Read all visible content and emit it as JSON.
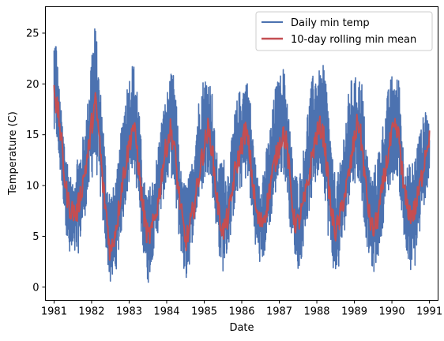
{
  "chart_data": {
    "type": "line",
    "title": "",
    "xlabel": "Date",
    "ylabel": "Temperature (C)",
    "xlim": [
      1980.77,
      1991.23
    ],
    "ylim": [
      -1.3,
      27.6
    ],
    "x_ticks": [
      1981,
      1982,
      1983,
      1984,
      1985,
      1986,
      1987,
      1988,
      1989,
      1990,
      1991
    ],
    "x_tick_labels": [
      "1981",
      "1982",
      "1983",
      "1984",
      "1985",
      "1986",
      "1987",
      "1988",
      "1989",
      "1990",
      "1991"
    ],
    "y_ticks": [
      0,
      5,
      10,
      15,
      20,
      25
    ],
    "y_tick_labels": [
      "0",
      "5",
      "10",
      "15",
      "20",
      "25"
    ],
    "grid": false,
    "legend_position": "top-right",
    "series": [
      {
        "name": "Daily min temp",
        "color": "#4c72b0",
        "style": "daily",
        "x": [
          1981.0,
          1981.05,
          1981.12,
          1981.2,
          1981.3,
          1981.4,
          1981.5,
          1981.6,
          1981.7,
          1981.8,
          1981.9,
          1982.0,
          1982.1,
          1982.2,
          1982.3,
          1982.4,
          1982.5,
          1982.6,
          1982.7,
          1982.8,
          1982.9,
          1983.0,
          1983.1,
          1983.2,
          1983.3,
          1983.4,
          1983.5,
          1983.6,
          1983.7,
          1983.8,
          1983.9,
          1984.0,
          1984.1,
          1984.2,
          1984.3,
          1984.4,
          1984.5,
          1984.6,
          1984.7,
          1984.8,
          1984.9,
          1985.0,
          1985.1,
          1985.2,
          1985.3,
          1985.4,
          1985.5,
          1985.6,
          1985.7,
          1985.8,
          1985.9,
          1986.0,
          1986.1,
          1986.2,
          1986.3,
          1986.4,
          1986.5,
          1986.6,
          1986.7,
          1986.8,
          1986.9,
          1987.0,
          1987.1,
          1987.2,
          1987.3,
          1987.4,
          1987.5,
          1987.6,
          1987.7,
          1987.8,
          1987.9,
          1988.0,
          1988.1,
          1988.2,
          1988.3,
          1988.4,
          1988.5,
          1988.6,
          1988.7,
          1988.8,
          1988.9,
          1989.0,
          1989.1,
          1989.2,
          1989.3,
          1989.4,
          1989.5,
          1989.6,
          1989.7,
          1989.8,
          1989.9,
          1990.0,
          1990.1,
          1990.2,
          1990.3,
          1990.4,
          1990.5,
          1990.6,
          1990.7,
          1990.8,
          1990.9,
          1991.0
        ],
        "lower": [
          14,
          15,
          12.2,
          10,
          6.5,
          2.2,
          3,
          2.3,
          4.5,
          6.5,
          8.5,
          10.5,
          11.5,
          10,
          6,
          3.2,
          0.1,
          0.8,
          2.5,
          5.5,
          8,
          9.8,
          12,
          9.5,
          5.5,
          3,
          0.1,
          2.5,
          4,
          6,
          8.5,
          9.7,
          11.5,
          9,
          5.5,
          3,
          0.2,
          2,
          5,
          7,
          9,
          10,
          11.5,
          9.5,
          6.5,
          3,
          1.5,
          3,
          5,
          7.5,
          8.8,
          9.8,
          10.5,
          9.5,
          5.5,
          3.5,
          1.8,
          3,
          5,
          7,
          9,
          10.5,
          11.5,
          9.5,
          5.5,
          3.5,
          1.6,
          3,
          5.5,
          7.5,
          9,
          10.3,
          11.5,
          9.5,
          5,
          2.5,
          0.6,
          2,
          4.5,
          7,
          9.5,
          10.2,
          10.5,
          8.5,
          5,
          2.5,
          1.3,
          2,
          4.5,
          7,
          9,
          10,
          11.5,
          9.5,
          5,
          2.2,
          1.3,
          1.5,
          4,
          6.5,
          9,
          10
        ],
        "upper": [
          25,
          25,
          20.5,
          17,
          14,
          12,
          10,
          13.5,
          13.5,
          15.5,
          18.5,
          24,
          26.2,
          21,
          17,
          11,
          9.5,
          10,
          12,
          16,
          19.5,
          21,
          22.4,
          21,
          15.5,
          10.5,
          9.5,
          10.5,
          12,
          15,
          17.5,
          19,
          21,
          21,
          16,
          10.5,
          10.5,
          11,
          13,
          17,
          20,
          20.9,
          21,
          20,
          14,
          12,
          13.5,
          11,
          13.5,
          17,
          19,
          20,
          20.8,
          20,
          15,
          11,
          11.3,
          12.5,
          14.5,
          17,
          20,
          20.6,
          21.9,
          20,
          15,
          11.5,
          11,
          12,
          16,
          19,
          21,
          21.9,
          21,
          22.2,
          19,
          13,
          11,
          11.5,
          15,
          18,
          20.5,
          20.6,
          20.9,
          20.5,
          15,
          12,
          11,
          13,
          15,
          17,
          19.5,
          21,
          20.4,
          21,
          14,
          12,
          12.2,
          13,
          15,
          16,
          18.5,
          16
        ]
      },
      {
        "name": "10-day rolling min mean",
        "color": "#c44e52",
        "style": "line",
        "x": [
          1981.0,
          1981.05,
          1981.12,
          1981.2,
          1981.3,
          1981.4,
          1981.5,
          1981.6,
          1981.7,
          1981.8,
          1981.9,
          1982.0,
          1982.1,
          1982.2,
          1982.3,
          1982.4,
          1982.5,
          1982.6,
          1982.7,
          1982.8,
          1982.9,
          1983.0,
          1983.1,
          1983.2,
          1983.3,
          1983.4,
          1983.5,
          1983.6,
          1983.7,
          1983.8,
          1983.9,
          1984.0,
          1984.1,
          1984.2,
          1984.3,
          1984.4,
          1984.5,
          1984.6,
          1984.7,
          1984.8,
          1984.9,
          1985.0,
          1985.1,
          1985.2,
          1985.3,
          1985.4,
          1985.5,
          1985.6,
          1985.7,
          1985.8,
          1985.9,
          1986.0,
          1986.1,
          1986.2,
          1986.3,
          1986.4,
          1986.5,
          1986.6,
          1986.7,
          1986.8,
          1986.9,
          1987.0,
          1987.1,
          1987.2,
          1987.3,
          1987.4,
          1987.5,
          1987.6,
          1987.7,
          1987.8,
          1987.9,
          1988.0,
          1988.1,
          1988.2,
          1988.3,
          1988.4,
          1988.5,
          1988.6,
          1988.7,
          1988.8,
          1988.9,
          1989.0,
          1989.1,
          1989.2,
          1989.3,
          1989.4,
          1989.5,
          1989.6,
          1989.7,
          1989.8,
          1989.9,
          1990.0,
          1990.1,
          1990.2,
          1990.3,
          1990.4,
          1990.5,
          1990.6,
          1990.7,
          1990.8,
          1990.9,
          1991.0
        ],
        "y": [
          20.5,
          18,
          17,
          14,
          10,
          8,
          7.5,
          7.2,
          9,
          11,
          13,
          16,
          18.2,
          15,
          10,
          7,
          3.2,
          5,
          7,
          10,
          12,
          14,
          16,
          14,
          10,
          7,
          4.8,
          5.5,
          7,
          9,
          12,
          14,
          15.5,
          14,
          10,
          7,
          4.5,
          5.5,
          7.5,
          9.5,
          12,
          13.8,
          15.5,
          14,
          10,
          7,
          5.5,
          6.5,
          8,
          11,
          12.5,
          14,
          15.5,
          13.5,
          10,
          7,
          6.2,
          7,
          8.5,
          11,
          12.5,
          14,
          15.3,
          14,
          10,
          6.5,
          6.2,
          7.5,
          9,
          11,
          13.5,
          15,
          15.8,
          14.5,
          10.5,
          7,
          5.5,
          6.5,
          8.5,
          10,
          12,
          14.5,
          16.5,
          14,
          10,
          7,
          5.5,
          6.5,
          8.5,
          11,
          13,
          15,
          15.5,
          14.5,
          10,
          8,
          7.2,
          7.5,
          9,
          11,
          13.5,
          15
        ]
      }
    ]
  }
}
